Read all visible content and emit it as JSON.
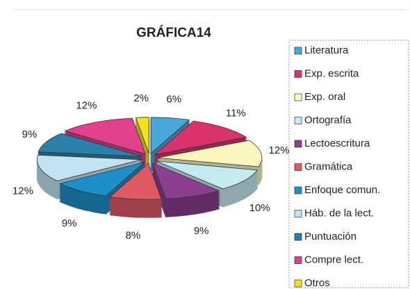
{
  "chart_data": {
    "type": "pie",
    "title": "GRÁFICA14",
    "categories": [
      "Literatura",
      "Exp. escrita",
      "Exp. oral",
      "Ortografía",
      "Lectoescritura",
      "Gramática",
      "Enfoque comun.",
      "Háb. de la lect.",
      "Puntuación",
      "Compre lect.",
      "Otros"
    ],
    "values": [
      6,
      11,
      12,
      10,
      9,
      8,
      9,
      12,
      9,
      12,
      2
    ],
    "value_labels": [
      "6%",
      "11%",
      "12%",
      "10%",
      "9%",
      "8%",
      "9%",
      "12%",
      "9%",
      "12%",
      "2%"
    ],
    "colors": [
      "#4aa8d8",
      "#d9336e",
      "#fbf6c0",
      "#c4ebf2",
      "#8a3f8f",
      "#e05a66",
      "#1f8fc8",
      "#c2e4f2",
      "#2a80a8",
      "#e0408c",
      "#f2e21e"
    ],
    "legend": "right"
  }
}
